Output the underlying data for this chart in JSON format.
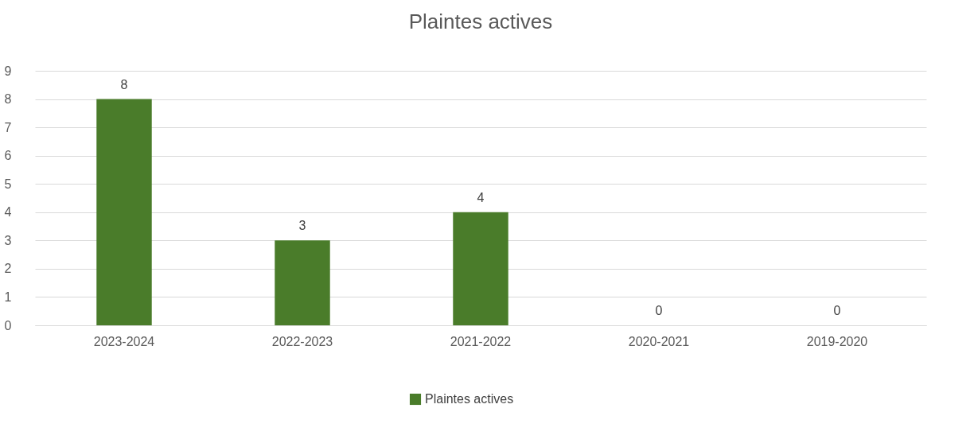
{
  "chart_data": {
    "type": "bar",
    "title": "Plaintes actives",
    "categories": [
      "2023-2024",
      "2022-2023",
      "2021-2022",
      "2020-2021",
      "2019-2020"
    ],
    "series": [
      {
        "name": "Plaintes actives",
        "color": "#4a7c2a",
        "values": [
          8,
          3,
          4,
          0,
          0
        ]
      }
    ],
    "ylim": [
      0,
      9
    ],
    "yticks": [
      0,
      1,
      2,
      3,
      4,
      5,
      6,
      7,
      8,
      9
    ],
    "grid": "y",
    "legend": "bottom",
    "data_labels": true
  }
}
